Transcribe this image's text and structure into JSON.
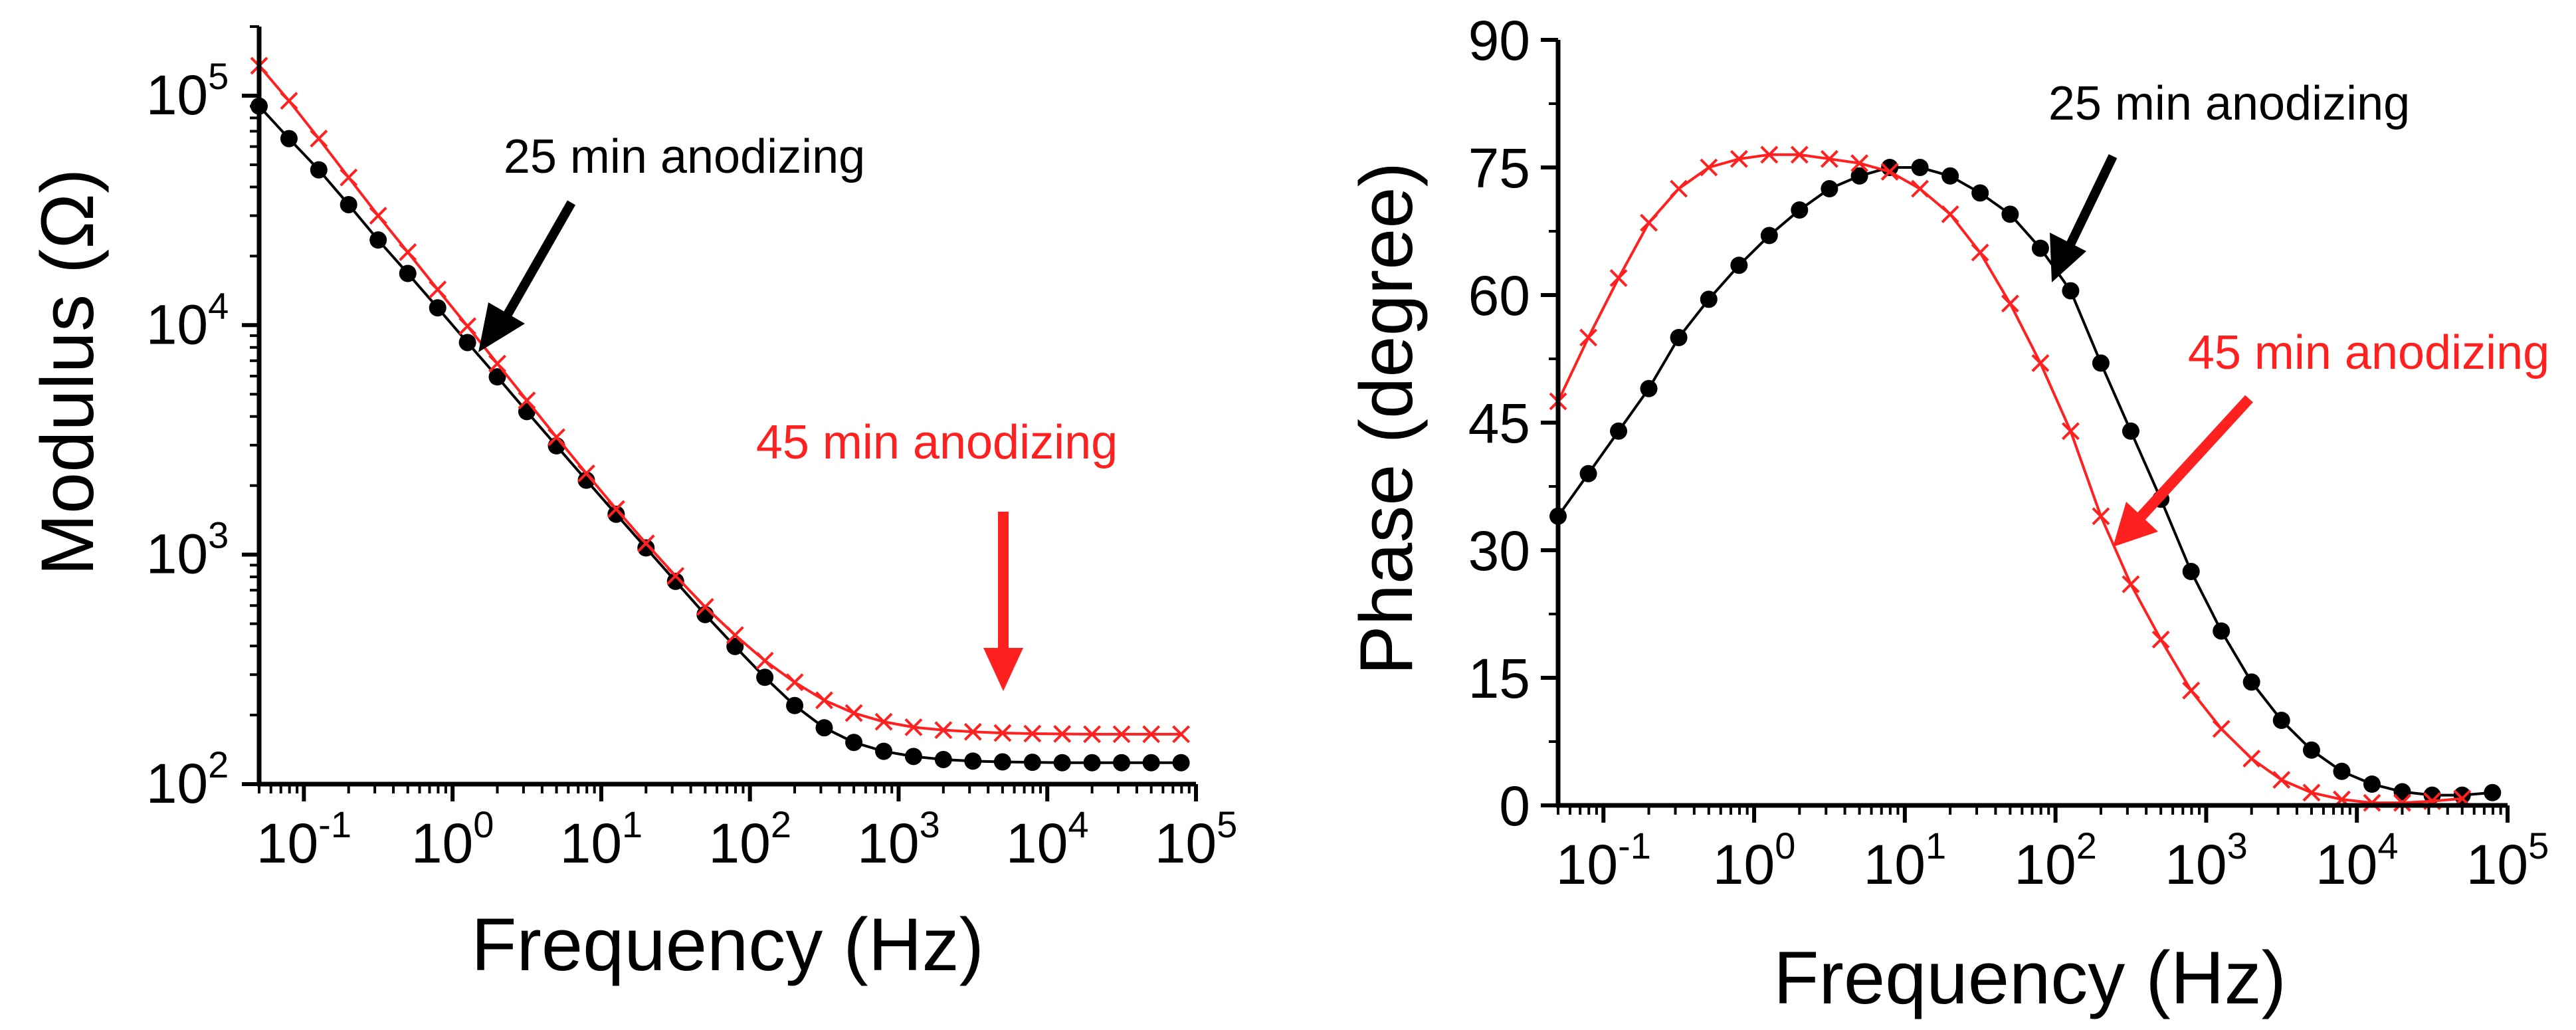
{
  "colors": {
    "black": "#000000",
    "red": "#ff2020"
  },
  "chart_data": [
    {
      "type": "scatter",
      "id": "modulus",
      "xscale": "log",
      "yscale": "log",
      "xlim": [
        0.05,
        100000
      ],
      "ylim": [
        100,
        200000
      ],
      "xlabel": "Frequency (Hz)",
      "ylabel": "Modulus (Ω)",
      "xticks": [
        {
          "value": 0.1,
          "base": "10",
          "exp": "-1"
        },
        {
          "value": 1,
          "base": "10",
          "exp": "0"
        },
        {
          "value": 10,
          "base": "10",
          "exp": "1"
        },
        {
          "value": 100,
          "base": "10",
          "exp": "2"
        },
        {
          "value": 1000,
          "base": "10",
          "exp": "3"
        },
        {
          "value": 10000,
          "base": "10",
          "exp": "4"
        },
        {
          "value": 100000,
          "base": "10",
          "exp": "5"
        }
      ],
      "yticks": [
        {
          "value": 100,
          "base": "10",
          "exp": "2"
        },
        {
          "value": 1000,
          "base": "10",
          "exp": "3"
        },
        {
          "value": 10000,
          "base": "10",
          "exp": "4"
        },
        {
          "value": 100000,
          "base": "10",
          "exp": "5"
        }
      ],
      "series": [
        {
          "name": "25 min anodizing",
          "color": "#000000",
          "marker": "circle",
          "x": [
            0.05,
            0.0794,
            0.126,
            0.2,
            0.316,
            0.5,
            0.794,
            1.26,
            2,
            3.16,
            5,
            7.94,
            12.6,
            20,
            31.6,
            50,
            79.4,
            126,
            200,
            316,
            500,
            794,
            1260,
            2000,
            3160,
            5000,
            7940,
            12600,
            20000,
            31600,
            50000,
            79400
          ],
          "y": [
            90000,
            65000,
            47500,
            33500,
            23500,
            16800,
            11900,
            8400,
            5950,
            4200,
            2980,
            2110,
            1500,
            1070,
            765,
            548,
            398,
            292,
            220,
            176,
            152,
            139,
            132,
            128,
            126,
            125,
            124.5,
            124,
            124,
            124,
            124,
            124
          ]
        },
        {
          "name": "45 min anodizing",
          "color": "#ff2020",
          "marker": "x",
          "x": [
            0.05,
            0.0794,
            0.126,
            0.2,
            0.316,
            0.5,
            0.794,
            1.26,
            2,
            3.16,
            5,
            7.94,
            12.6,
            20,
            31.6,
            50,
            79.4,
            126,
            200,
            316,
            500,
            794,
            1260,
            2000,
            3160,
            5000,
            7940,
            12600,
            20000,
            31600,
            50000,
            79400
          ],
          "y": [
            135000,
            95000,
            65000,
            44000,
            30000,
            20800,
            14300,
            9900,
            6800,
            4700,
            3250,
            2260,
            1580,
            1120,
            808,
            592,
            446,
            345,
            278,
            232,
            204,
            187,
            177,
            172,
            169,
            167,
            166,
            165.5,
            165,
            165,
            165,
            165
          ]
        }
      ],
      "annotations": [
        {
          "text": "25 min anodizing",
          "color": "#000000"
        },
        {
          "text": "45 min anodizing",
          "color": "#ff2020"
        }
      ]
    },
    {
      "type": "scatter",
      "id": "phase",
      "xscale": "log",
      "yscale": "linear",
      "xlim": [
        0.05,
        100000
      ],
      "ylim": [
        0,
        90
      ],
      "xlabel": "Frequency (Hz)",
      "ylabel": "Phase (degree)",
      "xticks": [
        {
          "value": 0.1,
          "base": "10",
          "exp": "-1"
        },
        {
          "value": 1,
          "base": "10",
          "exp": "0"
        },
        {
          "value": 10,
          "base": "10",
          "exp": "1"
        },
        {
          "value": 100,
          "base": "10",
          "exp": "2"
        },
        {
          "value": 1000,
          "base": "10",
          "exp": "3"
        },
        {
          "value": 10000,
          "base": "10",
          "exp": "4"
        },
        {
          "value": 100000,
          "base": "10",
          "exp": "5"
        }
      ],
      "yticks": [
        {
          "value": 0,
          "label": "0"
        },
        {
          "value": 15,
          "label": "15"
        },
        {
          "value": 30,
          "label": "30"
        },
        {
          "value": 45,
          "label": "45"
        },
        {
          "value": 60,
          "label": "60"
        },
        {
          "value": 75,
          "label": "75"
        },
        {
          "value": 90,
          "label": "90"
        }
      ],
      "series": [
        {
          "name": "25 min anodizing",
          "color": "#000000",
          "marker": "circle",
          "x": [
            0.05,
            0.0794,
            0.126,
            0.2,
            0.316,
            0.5,
            0.794,
            1.26,
            2,
            3.16,
            5,
            7.94,
            12.6,
            20,
            31.6,
            50,
            79.4,
            126,
            200,
            316,
            500,
            794,
            1260,
            2000,
            3160,
            5000,
            7940,
            12600,
            20000,
            31600,
            50000,
            79400
          ],
          "y": [
            34,
            39,
            44,
            49,
            55,
            59.5,
            63.5,
            67,
            70,
            72.5,
            74,
            75,
            75,
            74,
            72,
            69.5,
            65.5,
            60.5,
            52,
            44,
            36,
            27.5,
            20.5,
            14.5,
            10,
            6.5,
            4,
            2.5,
            1.6,
            1.2,
            1.2,
            1.5
          ]
        },
        {
          "name": "45 min anodizing",
          "color": "#ff2020",
          "marker": "x",
          "x": [
            0.05,
            0.0794,
            0.126,
            0.2,
            0.316,
            0.5,
            0.794,
            1.26,
            2,
            3.16,
            5,
            7.94,
            12.6,
            20,
            31.6,
            50,
            79.4,
            126,
            200,
            316,
            500,
            794,
            1260,
            2000,
            3160,
            5000,
            7940,
            12600,
            20000,
            31600,
            50000
          ],
          "y": [
            47.5,
            55,
            62,
            68.5,
            72.5,
            75,
            76,
            76.5,
            76.5,
            76,
            75.5,
            74.5,
            72.5,
            69.5,
            65,
            59,
            52,
            44,
            34,
            26,
            19.5,
            13.5,
            9,
            5.5,
            3,
            1.5,
            0.7,
            0.3,
            0.3,
            0.5,
            0.8
          ]
        }
      ],
      "annotations": [
        {
          "text": "25 min anodizing",
          "color": "#000000"
        },
        {
          "text": "45 min anodizing",
          "color": "#ff2020"
        }
      ]
    }
  ]
}
